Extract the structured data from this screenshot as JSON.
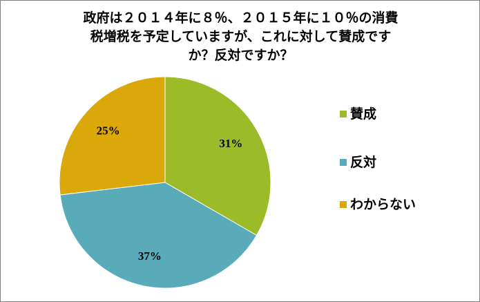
{
  "chart_data": {
    "type": "pie",
    "title_lines": [
      "政府は２０１４年に８％、２０１５年に１０％の消費",
      "税増税を予定していますが、これに対して賛成です",
      "か？反対ですか？"
    ],
    "categories": [
      "賛成",
      "反対",
      "わからない"
    ],
    "values": [
      31,
      37,
      25
    ],
    "labels": [
      "31%",
      "37%",
      "25%"
    ],
    "colors": [
      "#9BBB29",
      "#59ABBA",
      "#DBA80A"
    ],
    "legend_position": "right"
  }
}
